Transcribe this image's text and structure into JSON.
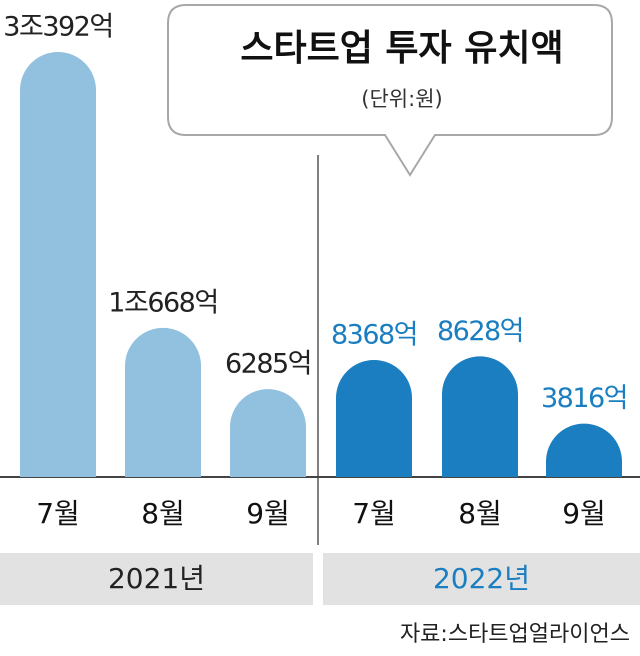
{
  "chart_data": {
    "type": "bar",
    "title": "스타트업 투자 유치액",
    "subtitle": "(단위:원)",
    "categories": [
      "7월",
      "8월",
      "9월"
    ],
    "series": [
      {
        "name": "2021년",
        "color": "#91c1df",
        "label_color": "#222222",
        "values": [
          30392,
          10668,
          6285
        ],
        "value_labels": [
          "3조392억",
          "1조668억",
          "6285억"
        ]
      },
      {
        "name": "2022년",
        "color": "#1a7ec0",
        "label_color": "#1a7ec0",
        "values": [
          8368,
          8628,
          3816
        ],
        "value_labels": [
          "8368억",
          "8628억",
          "3816억"
        ]
      }
    ],
    "source": "자료:스타트업얼라이언스"
  }
}
